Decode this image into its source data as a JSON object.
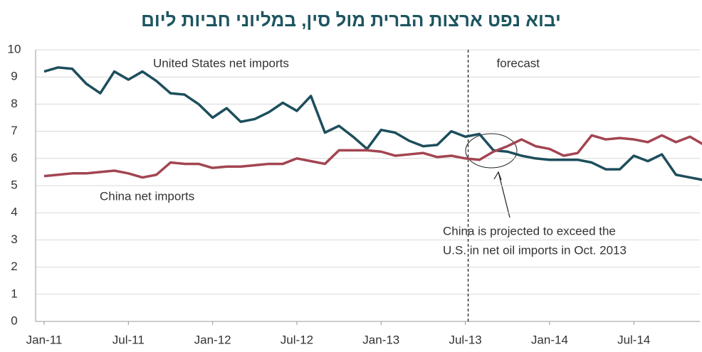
{
  "chart_data": {
    "type": "line",
    "title": "יבוא נפט ארצות הברית מול סין, במליוני חביות ליום",
    "categories": [
      "Jan-11",
      null,
      null,
      null,
      null,
      null,
      "Jul-11",
      null,
      null,
      null,
      null,
      null,
      "Jan-12",
      null,
      null,
      null,
      null,
      null,
      "Jul-12",
      null,
      null,
      null,
      null,
      null,
      "Jan-13",
      null,
      null,
      null,
      null,
      null,
      "Jul-13",
      null,
      null,
      null,
      null,
      null,
      "Jan-14",
      null,
      null,
      null,
      null,
      null,
      "Jul-14",
      null,
      null,
      null,
      null,
      null
    ],
    "series": [
      {
        "name": "United States net imports",
        "color": "#1d4e5c",
        "values": [
          9.2,
          9.35,
          9.3,
          8.75,
          8.4,
          9.2,
          8.9,
          9.2,
          8.85,
          8.4,
          8.35,
          8.0,
          7.5,
          7.85,
          7.35,
          7.45,
          7.7,
          8.05,
          7.75,
          8.3,
          6.95,
          7.2,
          6.8,
          6.35,
          7.05,
          6.95,
          6.65,
          6.45,
          6.5,
          7.0,
          6.8,
          6.9,
          6.3,
          6.25,
          6.1,
          6.0,
          5.95,
          5.95,
          5.95,
          5.85,
          5.6,
          5.6,
          6.1,
          5.9,
          6.15,
          5.4,
          5.3,
          5.2
        ]
      },
      {
        "name": "China net imports",
        "color": "#a34552",
        "values": [
          5.35,
          5.4,
          5.45,
          5.45,
          5.5,
          5.55,
          5.45,
          5.3,
          5.4,
          5.85,
          5.8,
          5.8,
          5.65,
          5.7,
          5.7,
          5.75,
          5.8,
          5.8,
          6.0,
          5.9,
          5.8,
          6.3,
          6.3,
          6.3,
          6.25,
          6.1,
          6.15,
          6.2,
          6.05,
          6.1,
          6.0,
          5.95,
          6.25,
          6.45,
          6.7,
          6.45,
          6.35,
          6.1,
          6.2,
          6.85,
          6.7,
          6.75,
          6.7,
          6.6,
          6.85,
          6.6,
          6.8,
          6.5
        ]
      }
    ],
    "ylim": [
      0,
      10
    ],
    "yticks": [
      0,
      1,
      2,
      3,
      4,
      5,
      6,
      7,
      8,
      9,
      10
    ],
    "grid": true,
    "forecast": {
      "label": "forecast",
      "x": 30.2
    },
    "annotation": [
      "China is projected to exceed the",
      "U.S. in net oil imports in Oct. 2013"
    ]
  }
}
